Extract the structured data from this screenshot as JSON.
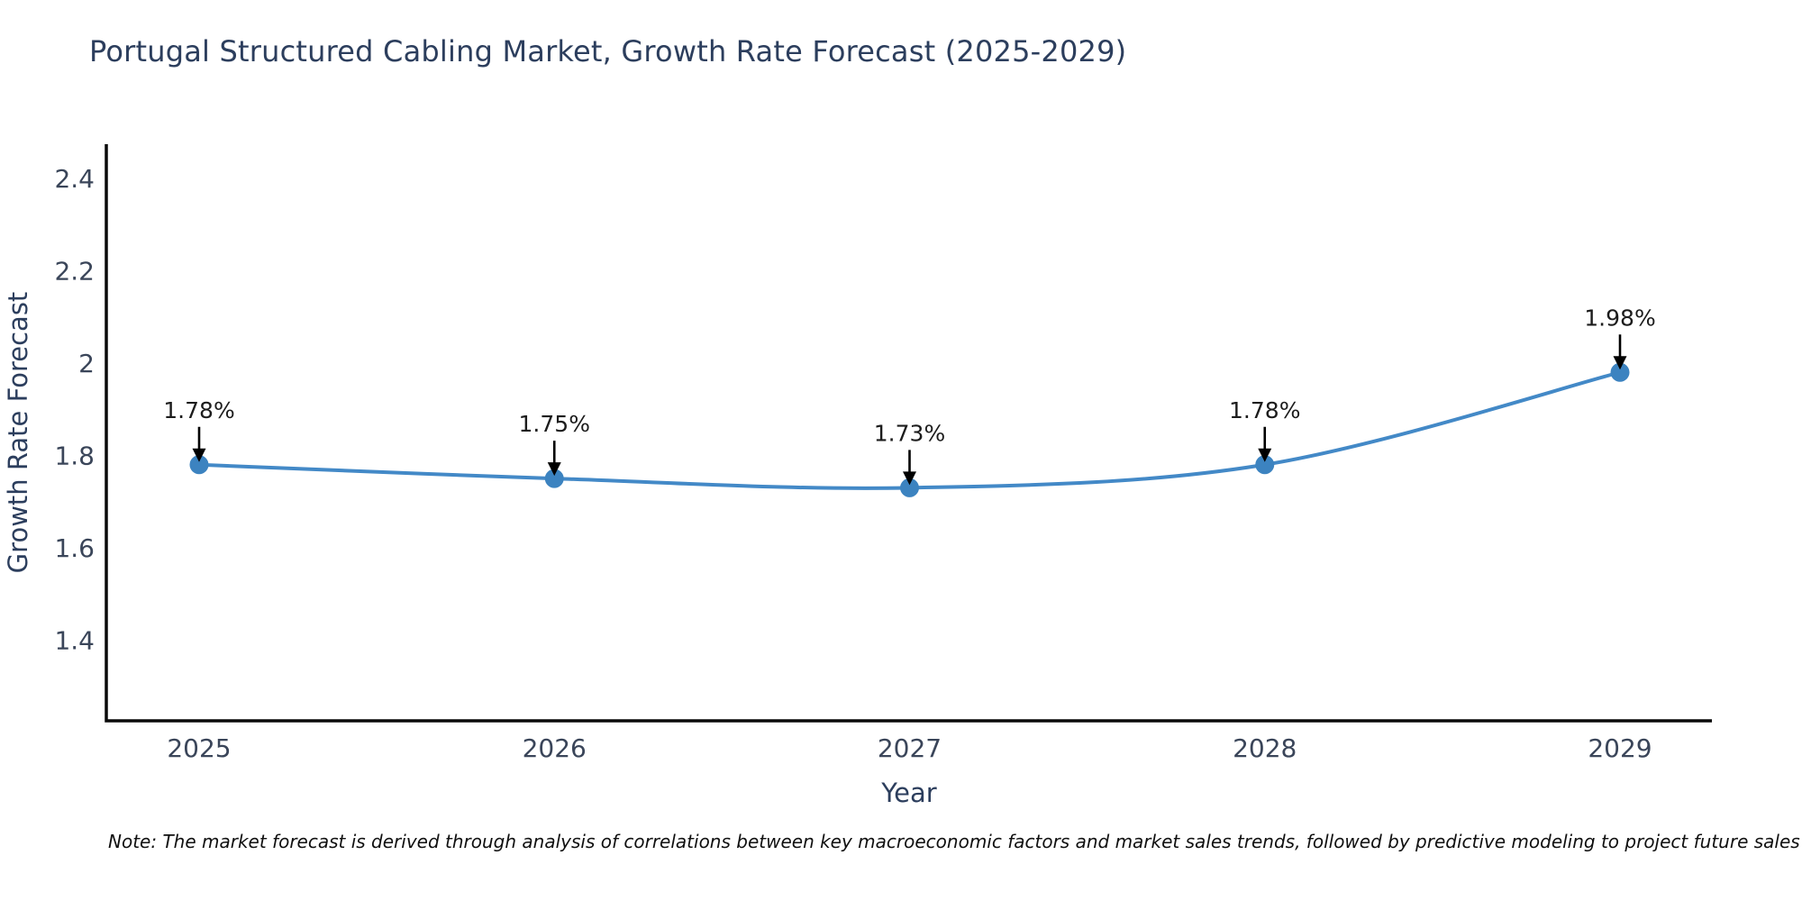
{
  "title": "Portugal Structured Cabling Market, Growth Rate Forecast (2025-2029)",
  "note": "Note: The market forecast is derived through analysis of correlations between key macroeconomic factors and market sales trends, followed by predictive modeling to project future sales",
  "chart_data": {
    "type": "line",
    "title": "Portugal Structured Cabling Market, Growth Rate Forecast (2025-2029)",
    "xlabel": "Year",
    "ylabel": "Growth Rate Forecast",
    "categories": [
      "2025",
      "2026",
      "2027",
      "2028",
      "2029"
    ],
    "series": [
      {
        "name": "Growth Rate Forecast",
        "values": [
          1.78,
          1.75,
          1.73,
          1.78,
          1.98
        ],
        "point_labels": [
          "1.78%",
          "1.75%",
          "1.73%",
          "1.78%",
          "1.98%"
        ]
      }
    ],
    "yticks": [
      1.4,
      1.6,
      1.8,
      2,
      2.2,
      2.4
    ],
    "ytick_labels": [
      "1.4",
      "1.6",
      "1.8",
      "2",
      "2.2",
      "2.4"
    ],
    "ylim": [
      1.23,
      2.47
    ],
    "grid": false,
    "legend": false,
    "line_style": "smooth-spline-with-circle-markers",
    "annotation_style": "value-label-with-down-arrow",
    "colors": {
      "line": "#4389c7",
      "marker": "#3c83c0",
      "axis": "#0a0a0a",
      "arrow": "#000000",
      "tick_text": "#3a4559",
      "axis_title_text": "#2c3e5d",
      "annotation_text": "#1c1c1c",
      "background": "#ffffff"
    }
  }
}
